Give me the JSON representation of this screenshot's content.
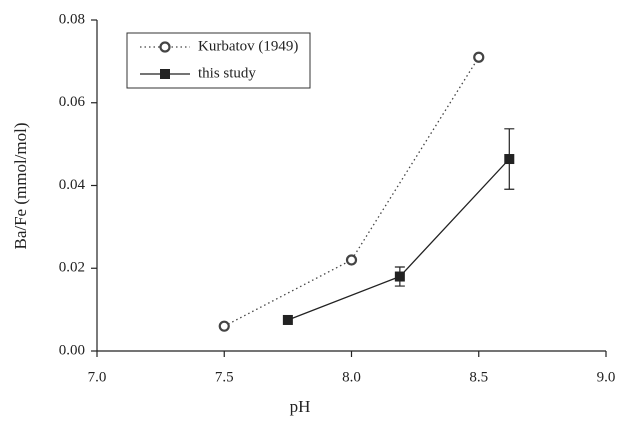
{
  "chart_data": {
    "type": "line",
    "x_label": "pH",
    "y_label": "Ba/Fe (mmol/mol)",
    "xlim": [
      7.0,
      9.0
    ],
    "xticks": [
      {
        "value": 7.0,
        "label": "7.0"
      },
      7.5,
      {
        "value": 8.0,
        "label": "8.0"
      },
      8.5,
      {
        "value": 9.0,
        "label": "9.0"
      }
    ],
    "ylim": [
      0,
      0.08
    ],
    "yticks": [
      {
        "value": 0,
        "label": "0.00"
      },
      {
        "value": 0.02,
        "label": "0.02"
      },
      {
        "value": 0.04,
        "label": "0.04"
      },
      {
        "value": 0.06,
        "label": "0.06"
      },
      {
        "value": 0.08,
        "label": "0.08"
      }
    ],
    "grid": false,
    "legend": "upper left",
    "series": [
      {
        "name": "Kurbatov (1949)",
        "color": "#444444",
        "marker": "circle",
        "line": "dotted",
        "x": [
          7.5,
          8.0,
          8.5
        ],
        "values": [
          0.006,
          0.022,
          0.071
        ]
      },
      {
        "name": "this study",
        "color": "#222222",
        "marker": "square",
        "line": "solid",
        "x": [
          7.75,
          8.19,
          8.62
        ],
        "values": [
          0.0075,
          0.018,
          0.0464
        ],
        "errors": [
          null,
          0.0023,
          0.0073
        ]
      }
    ]
  }
}
